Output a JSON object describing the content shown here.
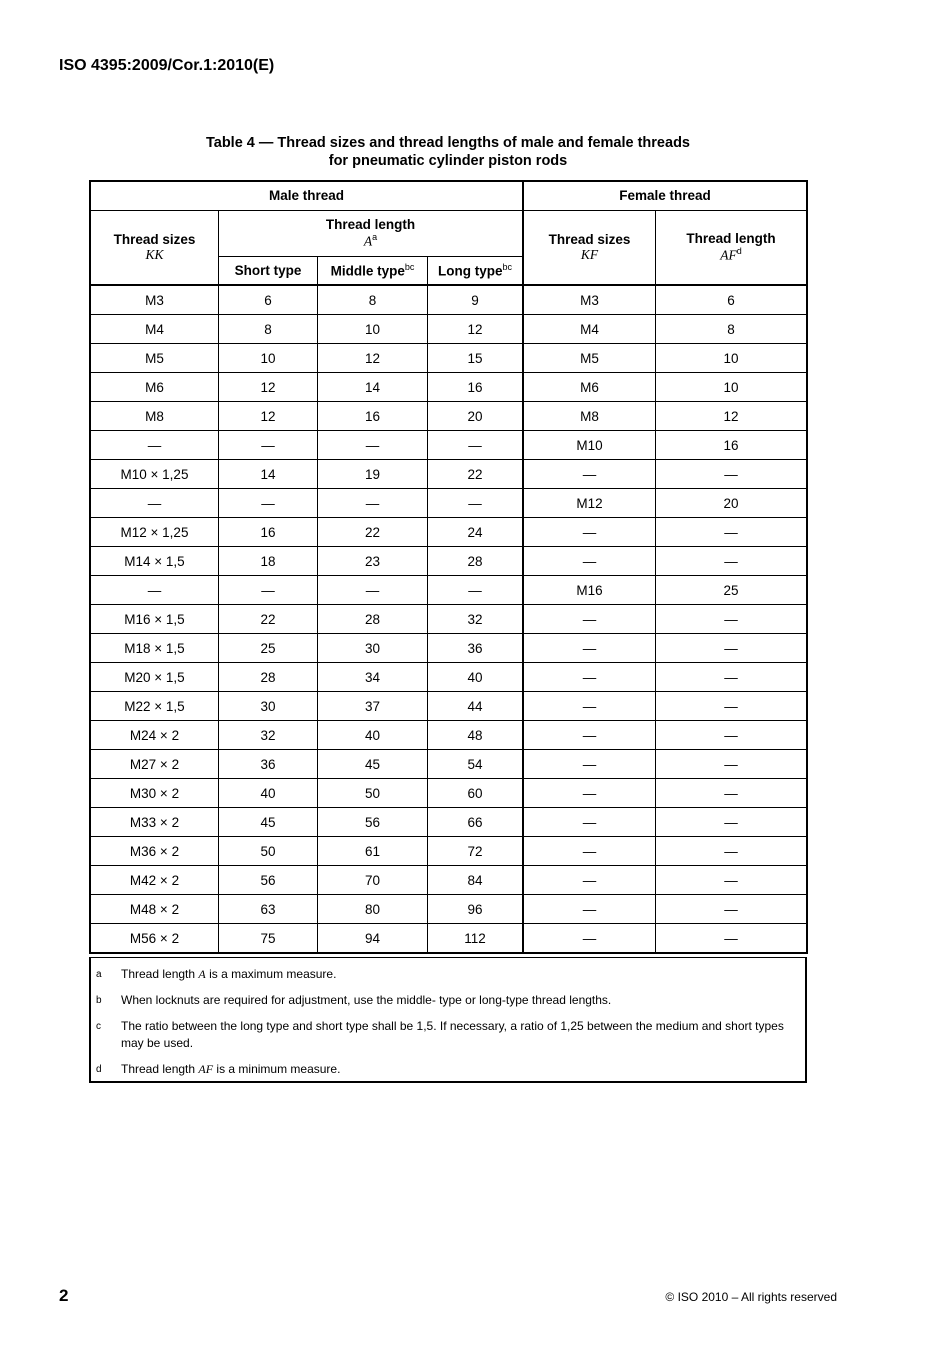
{
  "header": {
    "doc_id": "ISO 4395:2009/Cor.1:2010(E)"
  },
  "title": {
    "line1": "Table 4 — Thread sizes and thread lengths of male and female threads",
    "line2": "for pneumatic cylinder piston rods"
  },
  "table": {
    "male": "Male thread",
    "female": "Female thread",
    "thread_sizes": "Thread sizes",
    "kk": "KK",
    "thread_length": "Thread length",
    "a": "A",
    "a_sup": "a",
    "short": "Short type",
    "middle": "Middle type",
    "long": "Long type",
    "bc": "bc",
    "kf": "KF",
    "af": "AF",
    "d_sup": "d",
    "rows": [
      [
        "M3",
        "6",
        "8",
        "9",
        "M3",
        "6"
      ],
      [
        "M4",
        "8",
        "10",
        "12",
        "M4",
        "8"
      ],
      [
        "M5",
        "10",
        "12",
        "15",
        "M5",
        "10"
      ],
      [
        "M6",
        "12",
        "14",
        "16",
        "M6",
        "10"
      ],
      [
        "M8",
        "12",
        "16",
        "20",
        "M8",
        "12"
      ],
      [
        "—",
        "—",
        "—",
        "—",
        "M10",
        "16"
      ],
      [
        "M10 × 1,25",
        "14",
        "19",
        "22",
        "—",
        "—"
      ],
      [
        "—",
        "—",
        "—",
        "—",
        "M12",
        "20"
      ],
      [
        "M12 × 1,25",
        "16",
        "22",
        "24",
        "—",
        "—"
      ],
      [
        "M14 × 1,5",
        "18",
        "23",
        "28",
        "—",
        "—"
      ],
      [
        "—",
        "—",
        "—",
        "—",
        "M16",
        "25"
      ],
      [
        "M16 × 1,5",
        "22",
        "28",
        "32",
        "—",
        "—"
      ],
      [
        "M18 × 1,5",
        "25",
        "30",
        "36",
        "—",
        "—"
      ],
      [
        "M20 × 1,5",
        "28",
        "34",
        "40",
        "—",
        "—"
      ],
      [
        "M22 × 1,5",
        "30",
        "37",
        "44",
        "—",
        "—"
      ],
      [
        "M24 × 2",
        "32",
        "40",
        "48",
        "—",
        "—"
      ],
      [
        "M27 × 2",
        "36",
        "45",
        "54",
        "—",
        "—"
      ],
      [
        "M30 × 2",
        "40",
        "50",
        "60",
        "—",
        "—"
      ],
      [
        "M33 × 2",
        "45",
        "56",
        "66",
        "—",
        "—"
      ],
      [
        "M36 × 2",
        "50",
        "61",
        "72",
        "—",
        "—"
      ],
      [
        "M42 × 2",
        "56",
        "70",
        "84",
        "—",
        "—"
      ],
      [
        "M48 × 2",
        "63",
        "80",
        "96",
        "—",
        "—"
      ],
      [
        "M56 × 2",
        "75",
        "94",
        "112",
        "—",
        "—"
      ]
    ]
  },
  "footnotes": {
    "a": {
      "key": "a",
      "pre": "Thread length ",
      "sym": "A",
      "post": " is a maximum measure."
    },
    "b": {
      "key": "b",
      "text": "When locknuts are required for adjustment, use the middle- type or long-type thread lengths."
    },
    "c": {
      "key": "c",
      "text": "The ratio between the long type and short type shall be 1,5. If necessary, a ratio of 1,25 between the medium and short types may be used."
    },
    "d": {
      "key": "d",
      "pre": "Thread length ",
      "sym": "AF",
      "post": " is a minimum measure."
    }
  },
  "footer": {
    "page": "2",
    "copyright": "©   ISO 2010 – All rights reserved"
  }
}
